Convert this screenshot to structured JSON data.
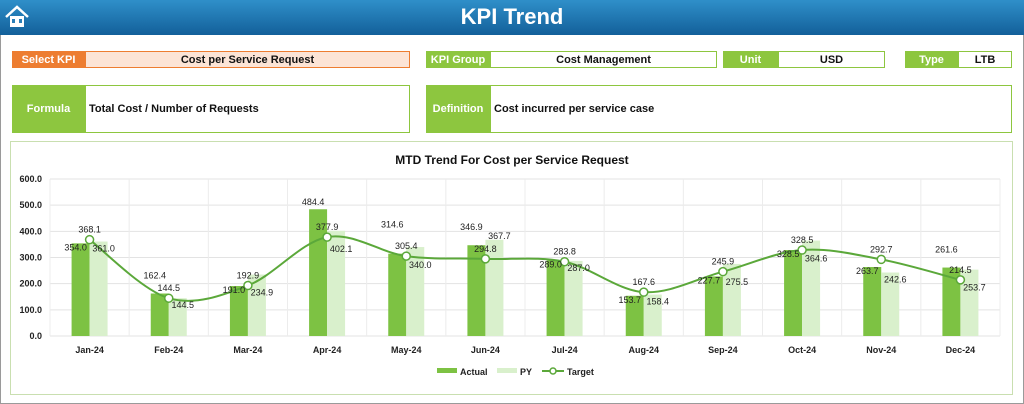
{
  "header": {
    "title": "KPI Trend",
    "home_icon": "home-icon"
  },
  "fields": {
    "select_kpi": {
      "label": "Select KPI",
      "value": "Cost per Service Request"
    },
    "kpi_group": {
      "label": "KPI Group",
      "value": "Cost Management"
    },
    "unit": {
      "label": "Unit",
      "value": "USD"
    },
    "type": {
      "label": "Type",
      "value": "LTB"
    },
    "formula": {
      "label": "Formula",
      "value": "Total Cost / Number of Requests"
    },
    "definition": {
      "label": "Definition",
      "value": "Cost incurred per service case"
    }
  },
  "colors": {
    "actual": "#7DC243",
    "py": "#D9F0CC",
    "target": "#5BA83A",
    "select_label": "#ED7D31",
    "select_bg": "#FCE4D6",
    "green_label": "#8DC63F"
  },
  "chart_data": {
    "type": "bar",
    "title": "MTD Trend For Cost per Service Request",
    "categories": [
      "Jan-24",
      "Feb-24",
      "Mar-24",
      "Apr-24",
      "May-24",
      "Jun-24",
      "Jul-24",
      "Aug-24",
      "Sep-24",
      "Oct-24",
      "Nov-24",
      "Dec-24"
    ],
    "series": [
      {
        "name": "Actual",
        "type": "bar",
        "values": [
          354.0,
          162.4,
          191.0,
          484.4,
          314.6,
          346.9,
          289.0,
          153.7,
          227.7,
          328.5,
          263.7,
          261.6
        ]
      },
      {
        "name": "PY",
        "type": "bar",
        "values": [
          361.0,
          144.5,
          234.9,
          402.1,
          340.0,
          367.7,
          287.0,
          158.4,
          275.5,
          364.6,
          242.6,
          253.7
        ]
      },
      {
        "name": "Target",
        "type": "line",
        "smooth": true,
        "values": [
          368.1,
          144.5,
          192.9,
          377.9,
          305.4,
          294.8,
          283.8,
          167.6,
          245.9,
          328.5,
          292.7,
          214.5
        ]
      }
    ],
    "ylim": [
      0,
      600
    ],
    "yticks": [
      "0.0",
      "100.0",
      "200.0",
      "300.0",
      "400.0",
      "500.0",
      "600.0"
    ],
    "grid": true,
    "legend": "bottom"
  }
}
